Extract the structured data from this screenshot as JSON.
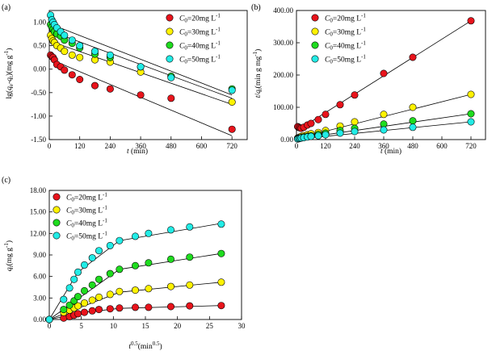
{
  "chart_data": [
    {
      "id": "a",
      "type": "scatter",
      "panel_label": "(a)",
      "xlabel": "t (min)",
      "ylabel": "lg(qe-qt)(mg g-1)",
      "xlim": [
        0,
        780
      ],
      "ylim": [
        -1.5,
        1.25
      ],
      "xticks": [
        0,
        120,
        240,
        360,
        480,
        600,
        720
      ],
      "yticks": [
        -1.5,
        -1.0,
        -0.5,
        0.0,
        0.5,
        1.0
      ],
      "ytick_labels": [
        "-1.50",
        "-1.00",
        "-0.50",
        "0.00",
        "0.50",
        "1.00"
      ],
      "legend_position": "top-right",
      "series": [
        {
          "name": "C0=20mg L-1",
          "color": "#e8141c",
          "x": [
            5,
            10,
            15,
            20,
            30,
            45,
            60,
            90,
            120,
            180,
            240,
            360,
            480,
            720
          ],
          "y": [
            0.3,
            0.27,
            0.25,
            0.2,
            0.1,
            0.05,
            -0.02,
            -0.12,
            -0.22,
            -0.35,
            -0.42,
            -0.55,
            -0.62,
            -1.28
          ],
          "fit": [
            [
              0,
              0.22
            ],
            [
              720,
              -1.42
            ]
          ]
        },
        {
          "name": "C0=30mg L-1",
          "color": "#fff200",
          "x": [
            5,
            10,
            15,
            20,
            30,
            45,
            60,
            90,
            120,
            180,
            240,
            360,
            480,
            720
          ],
          "y": [
            0.72,
            0.65,
            0.6,
            0.57,
            0.5,
            0.45,
            0.38,
            0.3,
            0.25,
            0.2,
            0.15,
            -0.06,
            -0.15,
            -0.7
          ],
          "fit": [
            [
              0,
              0.6
            ],
            [
              720,
              -0.75
            ]
          ]
        },
        {
          "name": "C0=40mg L-1",
          "color": "#1fdc1f",
          "x": [
            5,
            10,
            15,
            20,
            30,
            45,
            60,
            90,
            120,
            180,
            240,
            360,
            480,
            720
          ],
          "y": [
            0.95,
            0.9,
            0.85,
            0.8,
            0.75,
            0.7,
            0.62,
            0.55,
            0.45,
            0.32,
            0.25,
            0.05,
            -0.15,
            -0.42
          ],
          "fit": [
            [
              0,
              0.82
            ],
            [
              720,
              -0.62
            ]
          ]
        },
        {
          "name": "C0=50mg L-1",
          "color": "#22ece6",
          "x": [
            5,
            10,
            15,
            20,
            30,
            45,
            60,
            90,
            120,
            180,
            240,
            360,
            480,
            720
          ],
          "y": [
            1.15,
            1.05,
            1.0,
            0.95,
            0.88,
            0.8,
            0.72,
            0.62,
            0.5,
            0.38,
            0.3,
            0.05,
            -0.18,
            -0.45
          ],
          "fit": [
            [
              0,
              0.97
            ],
            [
              720,
              -0.55
            ]
          ]
        }
      ]
    },
    {
      "id": "b",
      "type": "scatter",
      "panel_label": "(b)",
      "xlabel": "t (min)",
      "ylabel": "t/qt(min g mg-1)",
      "xlim": [
        0,
        780
      ],
      "ylim": [
        0,
        400
      ],
      "xticks": [
        0,
        120,
        240,
        360,
        480,
        600,
        720
      ],
      "yticks": [
        0,
        100,
        200,
        300,
        400
      ],
      "ytick_labels": [
        "0.00",
        "100.00",
        "200.00",
        "300.00",
        "400.00"
      ],
      "legend_position": "top-left",
      "series": [
        {
          "name": "C0=20mg L-1",
          "color": "#e8141c",
          "x": [
            5,
            10,
            15,
            20,
            30,
            45,
            60,
            90,
            120,
            180,
            240,
            360,
            480,
            720
          ],
          "y": [
            40,
            38,
            36,
            35,
            38,
            45,
            50,
            62,
            78,
            108,
            138,
            205,
            255,
            368
          ],
          "fit": [
            [
              0,
              27
            ],
            [
              720,
              368
            ]
          ]
        },
        {
          "name": "C0=30mg L-1",
          "color": "#fff200",
          "x": [
            5,
            10,
            15,
            20,
            30,
            45,
            60,
            90,
            120,
            180,
            240,
            360,
            480,
            720
          ],
          "y": [
            5,
            6,
            8,
            10,
            12,
            15,
            18,
            22,
            28,
            42,
            55,
            78,
            100,
            140
          ],
          "fit": [
            [
              0,
              3
            ],
            [
              720,
              140
            ]
          ]
        },
        {
          "name": "C0=40mg L-1",
          "color": "#1fdc1f",
          "x": [
            5,
            10,
            15,
            20,
            30,
            45,
            60,
            90,
            120,
            180,
            240,
            360,
            480,
            720
          ],
          "y": [
            3,
            4,
            5,
            6,
            8,
            10,
            12,
            16,
            20,
            28,
            35,
            48,
            58,
            80
          ],
          "fit": [
            [
              0,
              2
            ],
            [
              720,
              80
            ]
          ]
        },
        {
          "name": "C0=50mg L-1",
          "color": "#22ece6",
          "x": [
            5,
            10,
            15,
            20,
            30,
            45,
            60,
            90,
            120,
            180,
            240,
            360,
            480,
            720
          ],
          "y": [
            2,
            3,
            4,
            5,
            6,
            8,
            10,
            12,
            15,
            20,
            25,
            30,
            38,
            55
          ],
          "fit": [
            [
              0,
              1
            ],
            [
              720,
              55
            ]
          ]
        }
      ]
    },
    {
      "id": "c",
      "type": "scatter",
      "panel_label": "(c)",
      "xlabel": "t0.5(min0.5)",
      "ylabel": "qt(mg g-1)",
      "xlim": [
        0,
        30
      ],
      "ylim": [
        0,
        18
      ],
      "xticks": [
        0,
        5,
        10,
        15,
        20,
        25,
        30
      ],
      "yticks": [
        0,
        3,
        6,
        9,
        12,
        15,
        18
      ],
      "ytick_labels": [
        "0.00",
        "3.00",
        "6.00",
        "9.00",
        "12.00",
        "15.00",
        "18.00"
      ],
      "legend_position": "top-left",
      "series": [
        {
          "name": "C0=20mg L-1",
          "color": "#e8141c",
          "x": [
            0,
            2.24,
            3.16,
            3.87,
            4.47,
            5.48,
            6.71,
            7.75,
            9.49,
            10.95,
            13.42,
            15.49,
            18.97,
            21.91,
            26.83
          ],
          "y": [
            0,
            0.2,
            0.4,
            0.6,
            0.8,
            1.0,
            1.2,
            1.4,
            1.5,
            1.6,
            1.7,
            1.7,
            1.8,
            1.9,
            1.95
          ],
          "fit": [
            [
              0,
              0
            ],
            [
              5.48,
              1.0
            ],
            [
              10.95,
              1.55
            ],
            [
              26.83,
              1.95
            ]
          ]
        },
        {
          "name": "C0=30mg L-1",
          "color": "#fff200",
          "x": [
            0,
            2.24,
            3.16,
            3.87,
            4.47,
            5.48,
            6.71,
            7.75,
            9.49,
            10.95,
            13.42,
            15.49,
            18.97,
            21.91,
            26.83
          ],
          "y": [
            0,
            1.0,
            1.3,
            1.6,
            1.9,
            2.3,
            2.7,
            3.1,
            3.5,
            3.9,
            4.1,
            4.3,
            4.6,
            4.8,
            5.2
          ],
          "fit": [
            [
              0,
              0
            ],
            [
              10.95,
              3.8
            ],
            [
              26.83,
              5.2
            ]
          ]
        },
        {
          "name": "C0=40mg L-1",
          "color": "#1fdc1f",
          "x": [
            0,
            2.24,
            3.16,
            3.87,
            4.47,
            5.48,
            6.71,
            7.75,
            9.49,
            10.95,
            13.42,
            15.49,
            18.97,
            21.91,
            26.83
          ],
          "y": [
            0,
            1.4,
            2.0,
            2.6,
            3.2,
            4.0,
            4.8,
            5.6,
            6.4,
            7.0,
            7.5,
            7.9,
            8.4,
            8.7,
            9.2
          ],
          "fit": [
            [
              0,
              0
            ],
            [
              10.95,
              7.0
            ],
            [
              26.83,
              9.2
            ]
          ]
        },
        {
          "name": "C0=50mg L-1",
          "color": "#22ece6",
          "x": [
            0,
            2.24,
            3.16,
            3.87,
            4.47,
            5.48,
            6.71,
            7.75,
            9.49,
            10.95,
            13.42,
            15.49,
            18.97,
            21.91,
            26.83
          ],
          "y": [
            0,
            2.8,
            4.4,
            5.6,
            6.6,
            7.6,
            8.6,
            9.6,
            10.3,
            11.0,
            11.6,
            12.0,
            12.5,
            12.9,
            13.3
          ],
          "fit": [
            [
              0,
              0
            ],
            [
              4.47,
              6.6
            ],
            [
              10.95,
              11.0
            ],
            [
              26.83,
              13.4
            ]
          ]
        }
      ]
    }
  ]
}
